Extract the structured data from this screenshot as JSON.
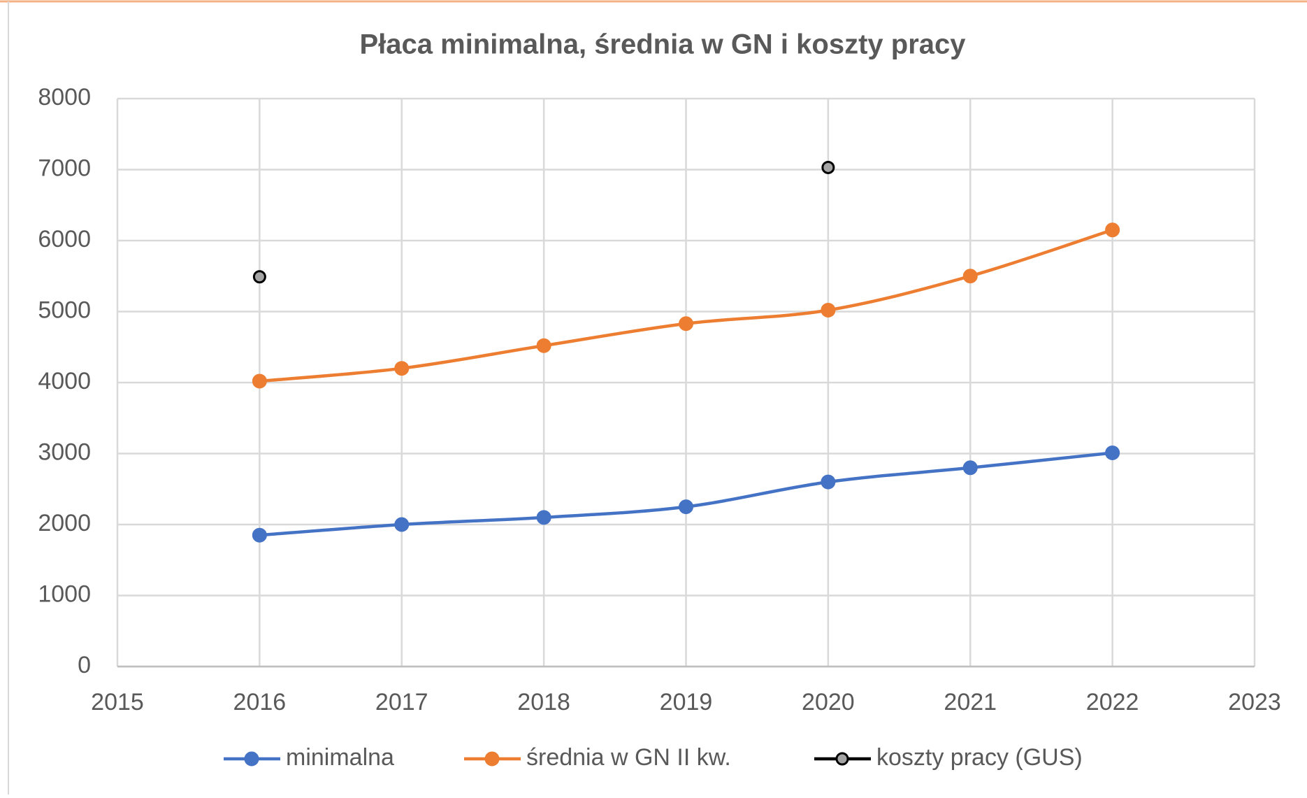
{
  "chart_data": {
    "type": "line",
    "title": "Płaca minimalna, średnia w GN i koszty pracy",
    "x": [
      2016,
      2017,
      2018,
      2019,
      2020,
      2021,
      2022
    ],
    "series": [
      {
        "name": "minimalna",
        "color": "#4472c4",
        "values": [
          1850,
          2000,
          2100,
          2250,
          2600,
          2800,
          3010
        ]
      },
      {
        "name": "średnia w GN II kw.",
        "color": "#ed7d31",
        "values": [
          4020,
          4200,
          4520,
          4830,
          5020,
          5500,
          6150
        ]
      },
      {
        "name": "koszty pracy (GUS)",
        "color": "#a5a5a5",
        "values": [
          5490,
          null,
          null,
          null,
          7030,
          null,
          null
        ]
      }
    ],
    "xlim": [
      2015,
      2023
    ],
    "xticks": [
      2015,
      2016,
      2017,
      2018,
      2019,
      2020,
      2021,
      2022,
      2023
    ],
    "ylim": [
      0,
      8000
    ],
    "yticks": [
      0,
      1000,
      2000,
      3000,
      4000,
      5000,
      6000,
      7000,
      8000
    ],
    "grid": true,
    "smooth": true,
    "legend": "bottom"
  }
}
